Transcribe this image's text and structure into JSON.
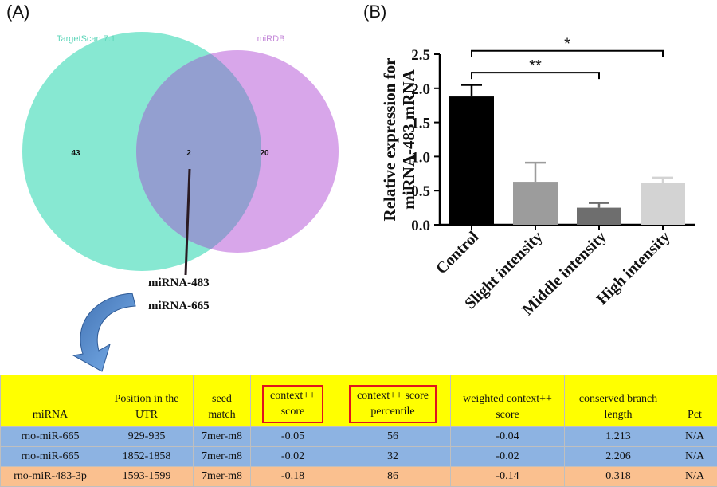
{
  "panel_a": {
    "label": "(A)",
    "venn": {
      "left_name": "TargetScan 7.1",
      "right_name": "miRDB",
      "left_only": "43",
      "overlap": "2",
      "right_only": "20",
      "colors": {
        "left": "#87e8d2",
        "right": "#d8a6ea",
        "overlap": "#939fd0"
      }
    },
    "overlap_mirnas": [
      "miRNA-483",
      "miRNA-665"
    ]
  },
  "panel_b": {
    "label": "(B)",
    "chart_data": {
      "type": "bar",
      "ylabel": "Relative expression for miRNA-483 mRNA",
      "ylim": [
        0,
        2.5
      ],
      "yticks": [
        "0.0",
        "0.5",
        "1.0",
        "1.5",
        "2.0",
        "2.5"
      ],
      "categories": [
        "Control",
        "Slight intensity",
        "Middle intensity",
        "High intensity"
      ],
      "values": [
        1.88,
        0.63,
        0.25,
        0.61
      ],
      "errors": [
        0.17,
        0.28,
        0.07,
        0.08
      ],
      "bar_colors": [
        "#000000",
        "#9c9c9c",
        "#6e6e6e",
        "#d3d3d3"
      ],
      "significance": [
        {
          "from": "Control",
          "to": "High intensity",
          "label": "*",
          "y": 2.55
        },
        {
          "from": "Control",
          "to": "Middle intensity",
          "label": "**",
          "y": 2.23
        }
      ]
    }
  },
  "table": {
    "headers": [
      {
        "lines": [
          "miRNA"
        ],
        "highlight": false
      },
      {
        "lines": [
          "Position in the",
          "UTR"
        ],
        "highlight": false
      },
      {
        "lines": [
          "seed",
          "match"
        ],
        "highlight": false
      },
      {
        "lines": [
          "context++",
          "score"
        ],
        "highlight": true
      },
      {
        "lines": [
          "context++ score",
          "percentile"
        ],
        "highlight": true
      },
      {
        "lines": [
          "weighted context++",
          "score"
        ],
        "highlight": false
      },
      {
        "lines": [
          "conserved branch",
          "length"
        ],
        "highlight": false
      },
      {
        "lines": [
          "Pct"
        ],
        "highlight": false
      }
    ],
    "rows": [
      [
        "rno-miR-665",
        "929-935",
        "7mer-m8",
        "-0.05",
        "56",
        "-0.04",
        "1.213",
        "N/A"
      ],
      [
        "rno-miR-665",
        "1852-1858",
        "7mer-m8",
        "-0.02",
        "32",
        "-0.02",
        "2.206",
        "N/A"
      ],
      [
        "rno-miR-483-3p",
        "1593-1599",
        "7mer-m8",
        "-0.18",
        "86",
        "-0.14",
        "0.318",
        "N/A"
      ]
    ]
  }
}
